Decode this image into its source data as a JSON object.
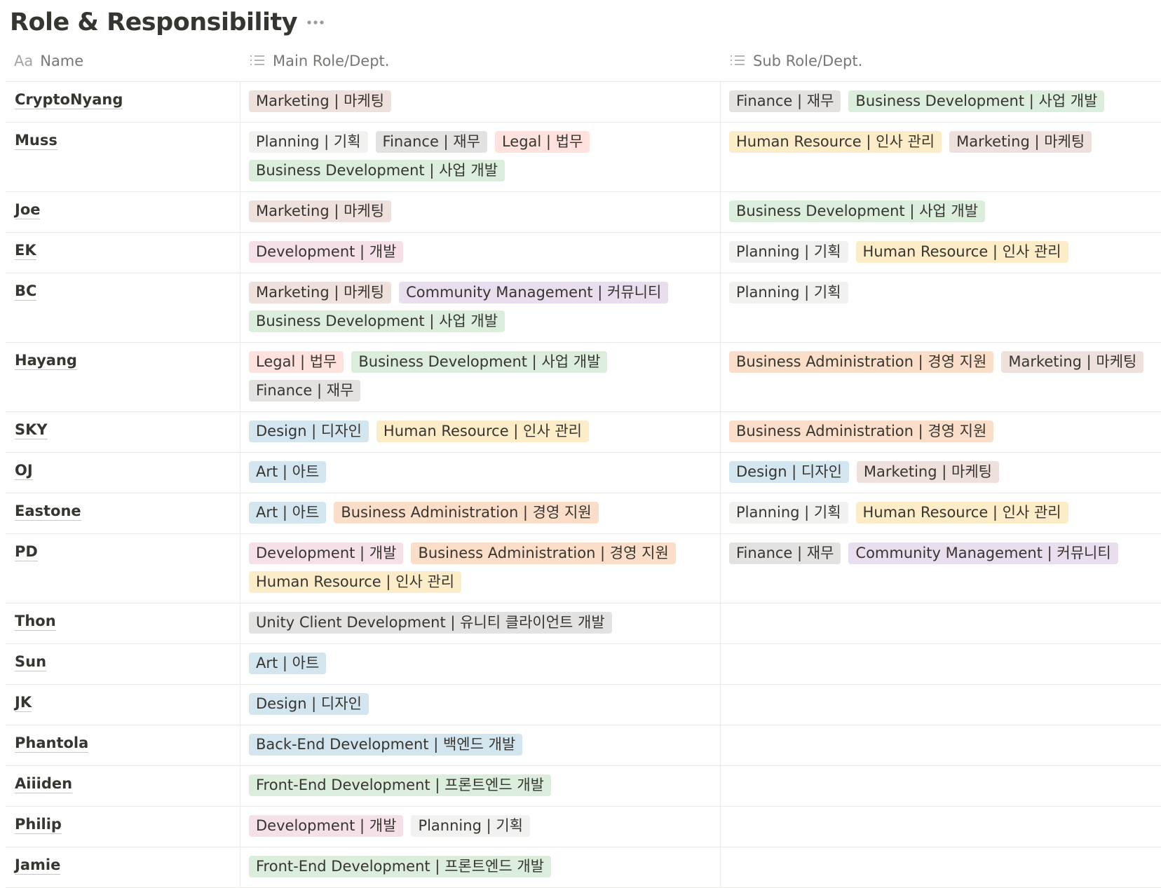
{
  "title": "Role & Responsibility",
  "columns": [
    {
      "icon": "Aa",
      "label": "Name"
    },
    {
      "label": "Main Role/Dept."
    },
    {
      "label": "Sub Role/Dept."
    }
  ],
  "rows": [
    {
      "name": "CryptoNyang",
      "main": [
        {
          "label": "Marketing | 마케팅",
          "color": "#eee0da"
        }
      ],
      "sub": [
        {
          "label": "Finance | 재무",
          "color": "#e3e2e0"
        },
        {
          "label": "Business Development | 사업 개발",
          "color": "#dbeddb"
        }
      ]
    },
    {
      "name": "Muss",
      "main": [
        {
          "label": "Planning | 기획",
          "color": "#f1f1ef"
        },
        {
          "label": "Finance | 재무",
          "color": "#e3e2e0"
        },
        {
          "label": "Legal | 법무",
          "color": "#ffe2dd"
        },
        {
          "label": "Business Development | 사업 개발",
          "color": "#dbeddb"
        }
      ],
      "sub": [
        {
          "label": "Human Resource | 인사 관리",
          "color": "#fdecc8"
        },
        {
          "label": "Marketing | 마케팅",
          "color": "#eee0da"
        }
      ]
    },
    {
      "name": "Joe",
      "main": [
        {
          "label": "Marketing | 마케팅",
          "color": "#eee0da"
        }
      ],
      "sub": [
        {
          "label": "Business Development | 사업 개발",
          "color": "#dbeddb"
        }
      ]
    },
    {
      "name": "EK",
      "main": [
        {
          "label": "Development | 개발",
          "color": "#f5e0e9"
        }
      ],
      "sub": [
        {
          "label": "Planning | 기획",
          "color": "#f1f1ef"
        },
        {
          "label": "Human Resource | 인사 관리",
          "color": "#fdecc8"
        }
      ]
    },
    {
      "name": "BC",
      "main": [
        {
          "label": "Marketing | 마케팅",
          "color": "#eee0da"
        },
        {
          "label": "Community Management | 커뮤니티",
          "color": "#e8deee"
        },
        {
          "label": "Business Development | 사업 개발",
          "color": "#dbeddb"
        }
      ],
      "sub": [
        {
          "label": "Planning | 기획",
          "color": "#f1f1ef"
        }
      ]
    },
    {
      "name": "Hayang",
      "main": [
        {
          "label": "Legal | 법무",
          "color": "#ffe2dd"
        },
        {
          "label": "Business Development | 사업 개발",
          "color": "#dbeddb"
        },
        {
          "label": "Finance | 재무",
          "color": "#e3e2e0"
        }
      ],
      "sub": [
        {
          "label": "Business Administration | 경영 지원",
          "color": "#fadec9"
        },
        {
          "label": "Marketing | 마케팅",
          "color": "#eee0da"
        }
      ]
    },
    {
      "name": "SKY",
      "main": [
        {
          "label": "Design | 디자인",
          "color": "#d3e5ef"
        },
        {
          "label": "Human Resource | 인사 관리",
          "color": "#fdecc8"
        }
      ],
      "sub": [
        {
          "label": "Business Administration | 경영 지원",
          "color": "#fadec9"
        }
      ]
    },
    {
      "name": "OJ",
      "main": [
        {
          "label": "Art | 아트",
          "color": "#d3e5ef"
        }
      ],
      "sub": [
        {
          "label": "Design | 디자인",
          "color": "#d3e5ef"
        },
        {
          "label": "Marketing | 마케팅",
          "color": "#eee0da"
        }
      ]
    },
    {
      "name": "Eastone",
      "main": [
        {
          "label": "Art | 아트",
          "color": "#d3e5ef"
        },
        {
          "label": "Business Administration | 경영 지원",
          "color": "#fadec9"
        }
      ],
      "sub": [
        {
          "label": "Planning | 기획",
          "color": "#f1f1ef"
        },
        {
          "label": "Human Resource | 인사 관리",
          "color": "#fdecc8"
        }
      ]
    },
    {
      "name": "PD",
      "main": [
        {
          "label": "Development | 개발",
          "color": "#f5e0e9"
        },
        {
          "label": "Business Administration | 경영 지원",
          "color": "#fadec9"
        },
        {
          "label": "Human Resource | 인사 관리",
          "color": "#fdecc8"
        }
      ],
      "sub": [
        {
          "label": "Finance | 재무",
          "color": "#e3e2e0"
        },
        {
          "label": "Community Management | 커뮤니티",
          "color": "#e8deee"
        }
      ]
    },
    {
      "name": "Thon",
      "main": [
        {
          "label": "Unity Client Development | 유니티 클라이언트 개발",
          "color": "#e3e2e0"
        }
      ],
      "sub": []
    },
    {
      "name": "Sun",
      "main": [
        {
          "label": "Art | 아트",
          "color": "#d3e5ef"
        }
      ],
      "sub": []
    },
    {
      "name": "JK",
      "main": [
        {
          "label": "Design | 디자인",
          "color": "#d3e5ef"
        }
      ],
      "sub": []
    },
    {
      "name": "Phantola",
      "main": [
        {
          "label": "Back-End Development | 백엔드 개발",
          "color": "#d3e5ef"
        }
      ],
      "sub": []
    },
    {
      "name": "Aiiiden",
      "main": [
        {
          "label": "Front-End Development | 프론트엔드 개발",
          "color": "#dbeddb"
        }
      ],
      "sub": []
    },
    {
      "name": "Philip",
      "main": [
        {
          "label": "Development | 개발",
          "color": "#f5e0e9"
        },
        {
          "label": "Planning | 기획",
          "color": "#f1f1ef"
        }
      ],
      "sub": []
    },
    {
      "name": "Jamie",
      "main": [
        {
          "label": "Front-End Development | 프론트엔드 개발",
          "color": "#dbeddb"
        }
      ],
      "sub": []
    }
  ]
}
